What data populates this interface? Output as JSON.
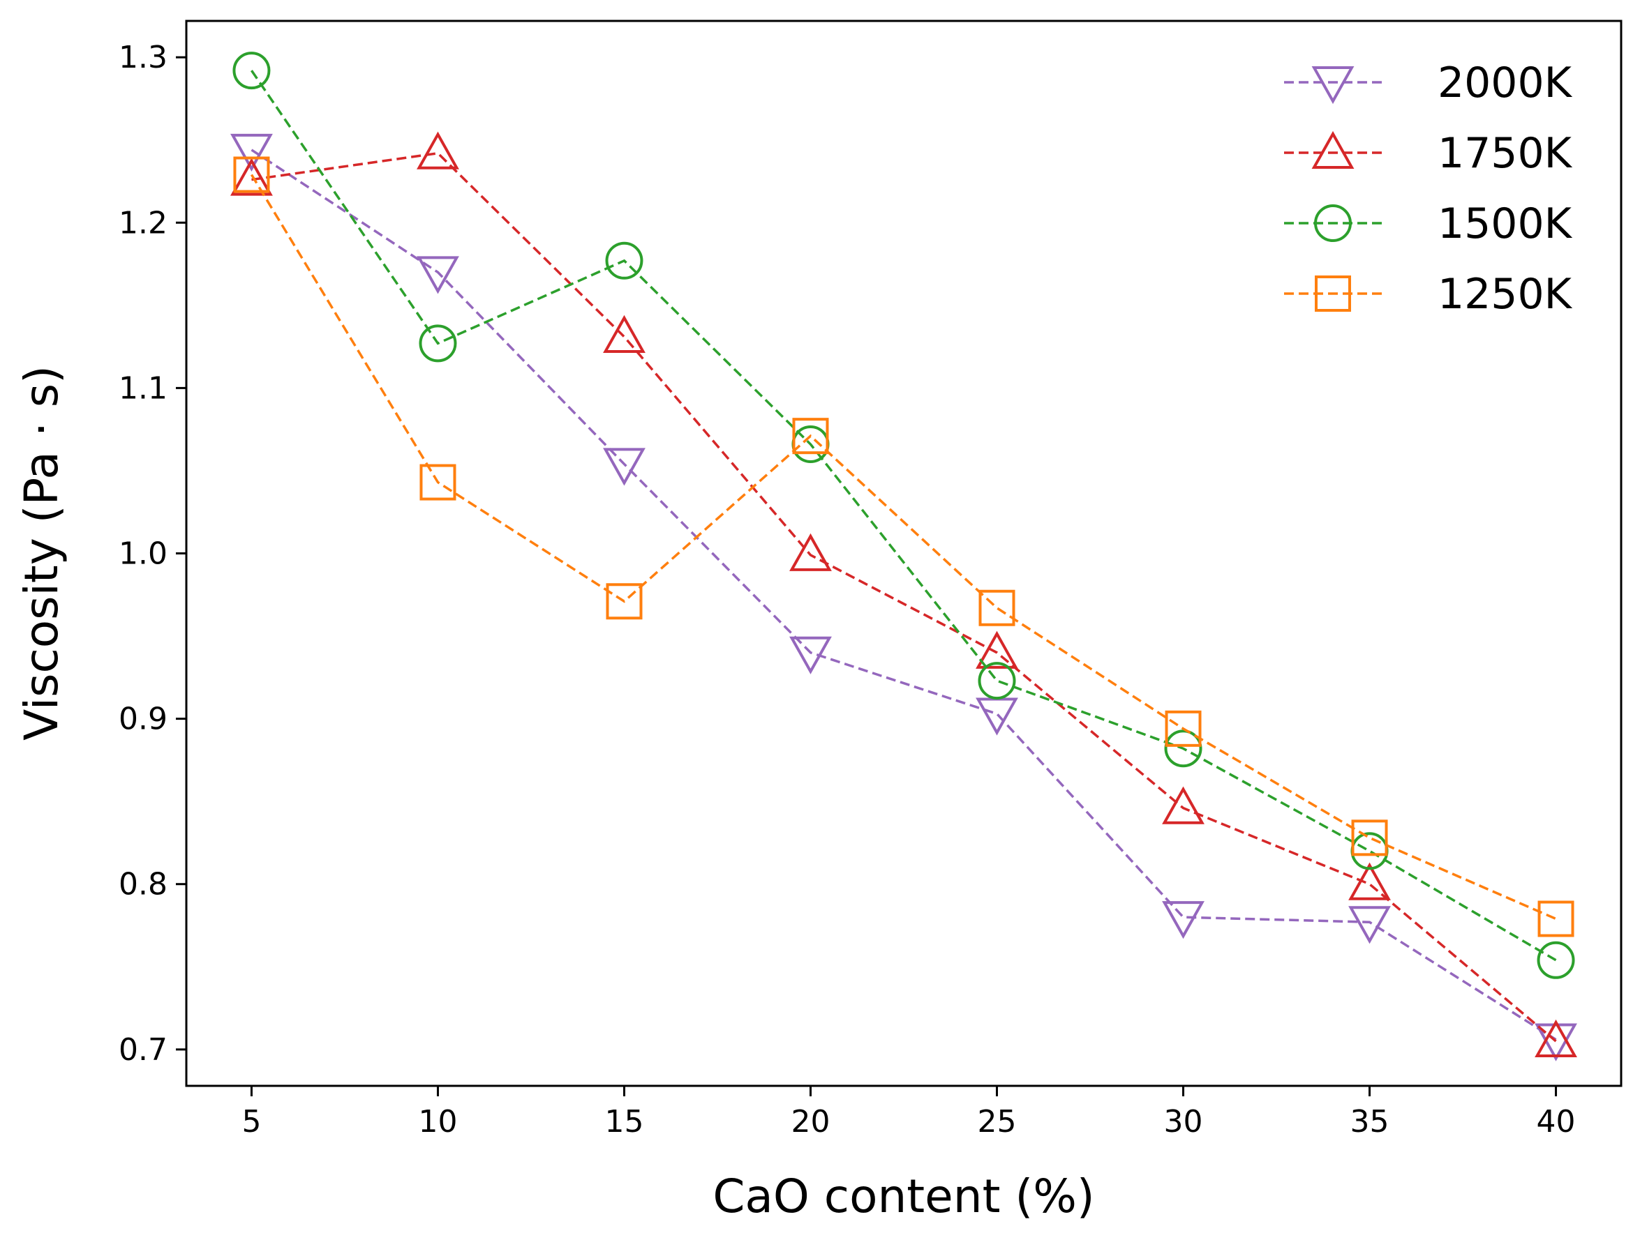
{
  "chart_data": {
    "type": "line",
    "title": "",
    "xlabel": "CaO content (%)",
    "ylabel": "Viscosity (Pa · s)",
    "x": [
      5,
      10,
      15,
      20,
      25,
      30,
      35,
      40
    ],
    "xlim": [
      3.25,
      41.75
    ],
    "ylim": [
      0.678,
      1.322
    ],
    "xticks": [
      5,
      10,
      15,
      20,
      25,
      30,
      35,
      40
    ],
    "xtick_labels": [
      "5",
      "10",
      "15",
      "20",
      "25",
      "30",
      "35",
      "40"
    ],
    "yticks": [
      0.7,
      0.8,
      0.9,
      1.0,
      1.1,
      1.2,
      1.3
    ],
    "ytick_labels": [
      "0.7",
      "0.8",
      "0.9",
      "1.0",
      "1.1",
      "1.2",
      "1.3"
    ],
    "grid": false,
    "legend_position": "top-right",
    "series": [
      {
        "name": "2000K",
        "marker": "triangle-down",
        "color": "#9467bd",
        "values": [
          1.244,
          1.17,
          1.054,
          0.94,
          0.903,
          0.78,
          0.777,
          0.706
        ]
      },
      {
        "name": "1750K",
        "marker": "triangle-up",
        "color": "#d62728",
        "values": [
          1.226,
          1.242,
          1.131,
          0.999,
          0.94,
          0.846,
          0.8,
          0.705
        ]
      },
      {
        "name": "1500K",
        "marker": "circle",
        "color": "#2ca02c",
        "values": [
          1.292,
          1.127,
          1.177,
          1.066,
          0.923,
          0.882,
          0.82,
          0.754
        ]
      },
      {
        "name": "1250K",
        "marker": "square",
        "color": "#ff7f0e",
        "values": [
          1.229,
          1.043,
          0.971,
          1.071,
          0.967,
          0.894,
          0.828,
          0.779
        ]
      }
    ]
  }
}
